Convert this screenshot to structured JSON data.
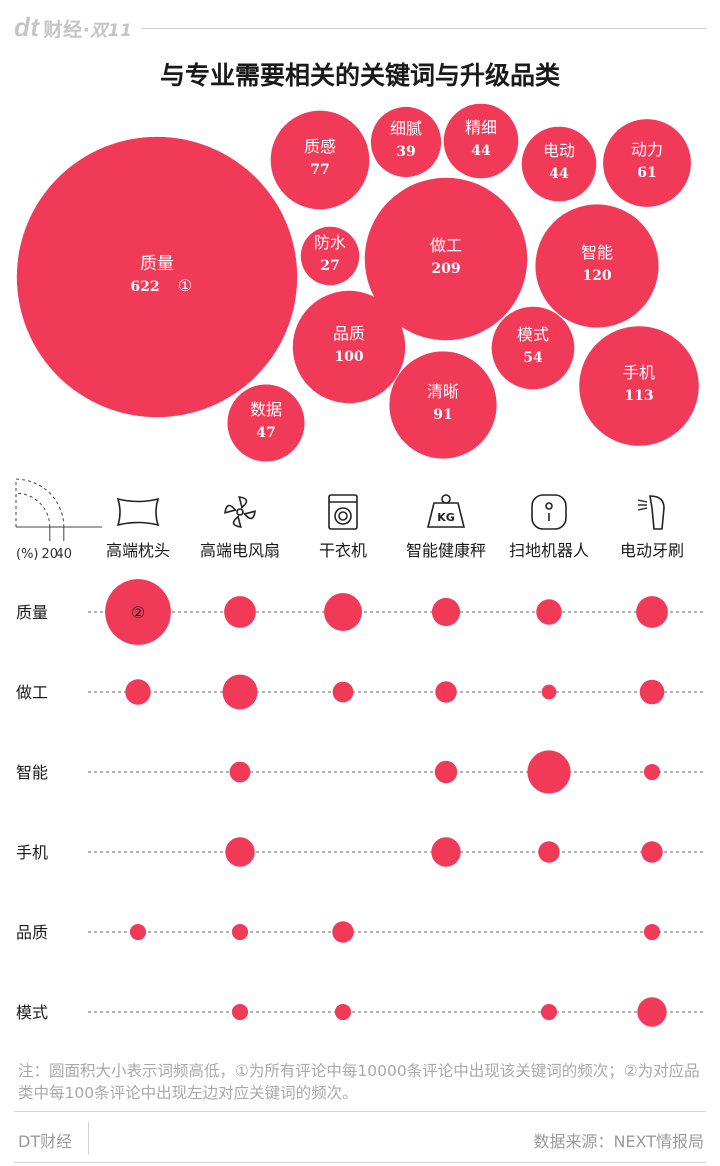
{
  "brand": {
    "logo": "dt",
    "name": "财经",
    "separator": "·",
    "sub": "双11"
  },
  "title": "与专业需要相关的关键词与升级品类",
  "colors": {
    "accent": "#f03a58",
    "text": "#1a1a1a",
    "muted": "#a9a9a9"
  },
  "chart_data": [
    {
      "type": "bubble",
      "title": "与专业需要相关的关键词与升级品类",
      "marker": "①",
      "values": [
        {
          "label": "质量",
          "value": 622
        },
        {
          "label": "质感",
          "value": 77
        },
        {
          "label": "细腻",
          "value": 39
        },
        {
          "label": "精细",
          "value": 44
        },
        {
          "label": "电动",
          "value": 44
        },
        {
          "label": "动力",
          "value": 61
        },
        {
          "label": "防水",
          "value": 27
        },
        {
          "label": "做工",
          "value": 209
        },
        {
          "label": "智能",
          "value": 120
        },
        {
          "label": "品质",
          "value": 100
        },
        {
          "label": "模式",
          "value": 54
        },
        {
          "label": "手机",
          "value": 113
        },
        {
          "label": "清晰",
          "value": 91
        },
        {
          "label": "数据",
          "value": 47
        }
      ]
    },
    {
      "type": "scatter",
      "legend": {
        "unit": "(%)",
        "ticks": [
          20,
          40
        ]
      },
      "marker": "②",
      "categories": [
        {
          "name": "高端枕头",
          "icon": "pillow-icon"
        },
        {
          "name": "高端电风扇",
          "icon": "fan-icon"
        },
        {
          "name": "干衣机",
          "icon": "dryer-icon"
        },
        {
          "name": "智能健康秤",
          "icon": "scale-icon",
          "icon_text": "KG"
        },
        {
          "name": "扫地机器人",
          "icon": "robot-vacuum-icon"
        },
        {
          "name": "电动牙刷",
          "icon": "toothbrush-icon"
        }
      ],
      "rows": [
        {
          "keyword": "质量",
          "values": [
            30,
            7,
            10,
            5.5,
            4.5,
            7
          ],
          "annotate": 0
        },
        {
          "keyword": "做工",
          "values": [
            4.5,
            8.5,
            3,
            3.2,
            1.5,
            4.2
          ]
        },
        {
          "keyword": "智能",
          "values": [
            null,
            3,
            null,
            3.5,
            13,
            1.8
          ]
        },
        {
          "keyword": "手机",
          "values": [
            null,
            6,
            null,
            6,
            3.2,
            3.2
          ]
        },
        {
          "keyword": "品质",
          "values": [
            1.8,
            1.8,
            3.2,
            null,
            null,
            1.8
          ]
        },
        {
          "keyword": "模式",
          "values": [
            null,
            1.8,
            1.8,
            null,
            1.8,
            6
          ]
        }
      ]
    }
  ],
  "note": "注：圆面积大小表示词频高低，①为所有评论中每10000条评论中出现该关键词的频次；②为对应品类中每100条评论中出现左边对应关键词的频次。",
  "footer": {
    "left": "DT财经",
    "right": "数据来源：NEXT情报局"
  }
}
